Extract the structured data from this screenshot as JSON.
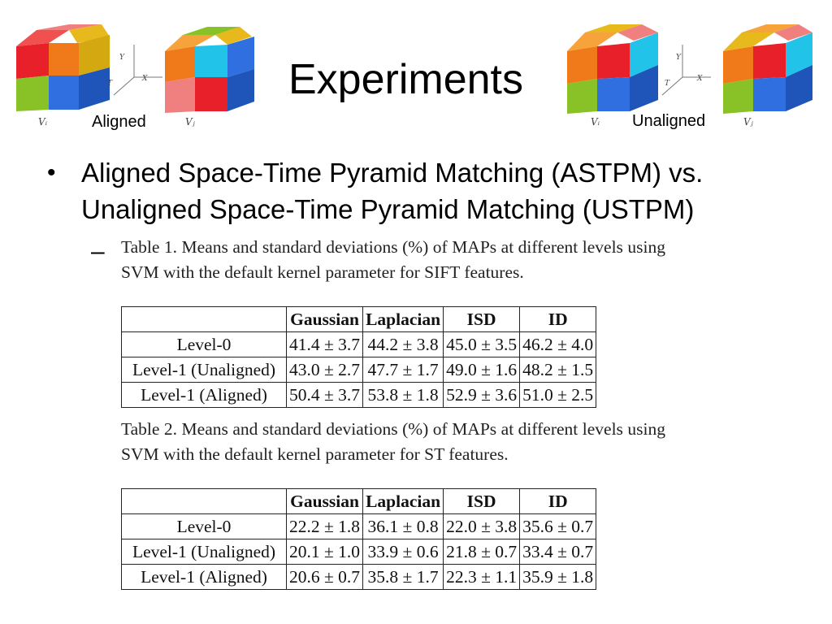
{
  "slide": {
    "title": "Experiments",
    "left_label": "Aligned",
    "right_label": "Unaligned",
    "vi_label": "Vᵢ",
    "vj_label": "Vⱼ",
    "axis_y": "Y",
    "axis_x": "X",
    "axis_t": "T"
  },
  "bullet": {
    "text": "Aligned Space-Time Pyramid Matching (ASTPM) vs. Unaligned Space-Time Pyramid Matching (USTPM)",
    "sub_dash": "–"
  },
  "table1": {
    "caption": "Table 1. Means and standard deviations (%) of MAPs at different levels using SVM with the default kernel parameter for SIFT features.",
    "headers": [
      "",
      "Gaussian",
      "Laplacian",
      "ISD",
      "ID"
    ],
    "rows": [
      [
        "Level-0",
        "41.4 ± 3.7",
        "44.2 ± 3.8",
        "45.0 ± 3.5",
        "46.2 ± 4.0"
      ],
      [
        "Level-1 (Unaligned)",
        "43.0 ± 2.7",
        "47.7 ± 1.7",
        "49.0 ± 1.6",
        "48.2 ± 1.5"
      ],
      [
        "Level-1 (Aligned)",
        "50.4 ± 3.7",
        "53.8 ± 1.8",
        "52.9 ± 3.6",
        "51.0 ± 2.5"
      ]
    ]
  },
  "table2": {
    "caption": "Table 2. Means and standard deviations (%) of MAPs at different levels using SVM with the default kernel parameter for ST features.",
    "headers": [
      "",
      "Gaussian",
      "Laplacian",
      "ISD",
      "ID"
    ],
    "rows": [
      [
        "Level-0",
        "22.2 ± 1.8",
        "36.1 ± 0.8",
        "22.0 ± 3.8",
        "35.6 ± 0.7"
      ],
      [
        "Level-1 (Unaligned)",
        "20.1 ± 1.0",
        "33.9 ± 0.6",
        "21.8 ± 0.7",
        "33.4 ± 0.7"
      ],
      [
        "Level-1 (Aligned)",
        "20.6 ± 0.7",
        "35.8 ± 1.7",
        "22.3 ± 1.1",
        "35.9 ± 1.8"
      ]
    ]
  },
  "colors": {
    "red": "#e8202a",
    "orange": "#f07a1a",
    "yellow": "#e8b91c",
    "green": "#88c226",
    "blue": "#2f6fe0",
    "cyan": "#22c3e8",
    "pink": "#f08080"
  }
}
